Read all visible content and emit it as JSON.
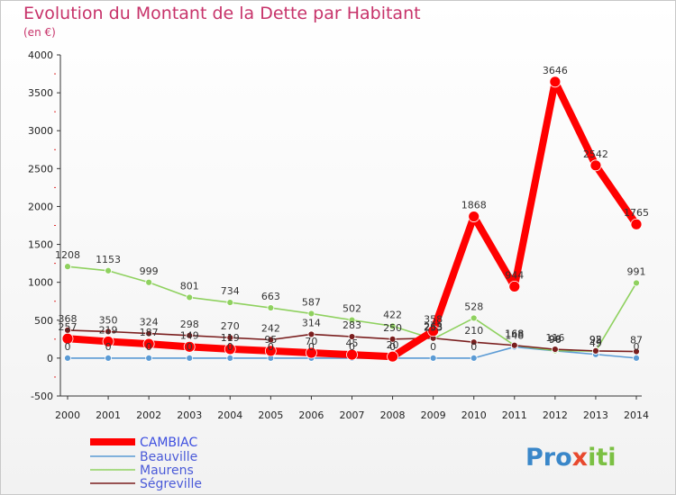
{
  "chart_data": {
    "type": "line",
    "title": "Evolution du Montant de la Dette par Habitant",
    "subtitle": "(en €)",
    "x": [
      "2000",
      "2001",
      "2002",
      "2003",
      "2004",
      "2005",
      "2006",
      "2007",
      "2008",
      "2009",
      "2010",
      "2011",
      "2012",
      "2013",
      "2014"
    ],
    "ylim": [
      -500,
      4000
    ],
    "yticks": [
      -500,
      0,
      500,
      1000,
      1500,
      2000,
      2500,
      3000,
      3500,
      4000
    ],
    "grid": false,
    "legend_position": "bottom-left",
    "series": [
      {
        "name": "CAMBIAC",
        "color": "#ff0000",
        "values": [
          257,
          219,
          187,
          149,
          119,
          95,
          70,
          45,
          20,
          358,
          1868,
          944,
          3646,
          2542,
          1765
        ],
        "labels": [
          "257",
          "219",
          "187",
          "149",
          "119",
          "95",
          "70",
          "45",
          "20",
          "358",
          "1868",
          "944",
          "3646",
          "2542",
          "1765"
        ]
      },
      {
        "name": "Beauville",
        "color": "#5b9bd5",
        "values": [
          0,
          0,
          0,
          0,
          0,
          0,
          0,
          0,
          0,
          0,
          0,
          148,
          96,
          49,
          0
        ],
        "labels": [
          "0",
          "0",
          "0",
          "0",
          "0",
          "0",
          "0",
          "0",
          "0",
          "0",
          "0",
          "148",
          "96",
          "49",
          "0"
        ]
      },
      {
        "name": "Maurens",
        "color": "#8fd15f",
        "values": [
          1208,
          1153,
          999,
          801,
          734,
          663,
          587,
          502,
          422,
          253,
          528,
          168,
          99,
          92,
          991
        ],
        "labels": [
          "1208",
          "1153",
          "999",
          "801",
          "734",
          "663",
          "587",
          "502",
          "422",
          "253",
          "528",
          "168",
          "99",
          "92",
          "991"
        ]
      },
      {
        "name": "Ségreville",
        "color": "#7a1e1e",
        "values": [
          368,
          350,
          324,
          298,
          270,
          242,
          314,
          283,
          250,
          263,
          210,
          168,
          116,
          95,
          87
        ],
        "labels": [
          "368",
          "350",
          "324",
          "298",
          "270",
          "242",
          "314",
          "283",
          "250",
          "263",
          "210",
          "168",
          "116",
          "95",
          "87"
        ]
      }
    ]
  },
  "logo": {
    "p1": "Pro",
    "x": "x",
    "p2": "iti"
  }
}
